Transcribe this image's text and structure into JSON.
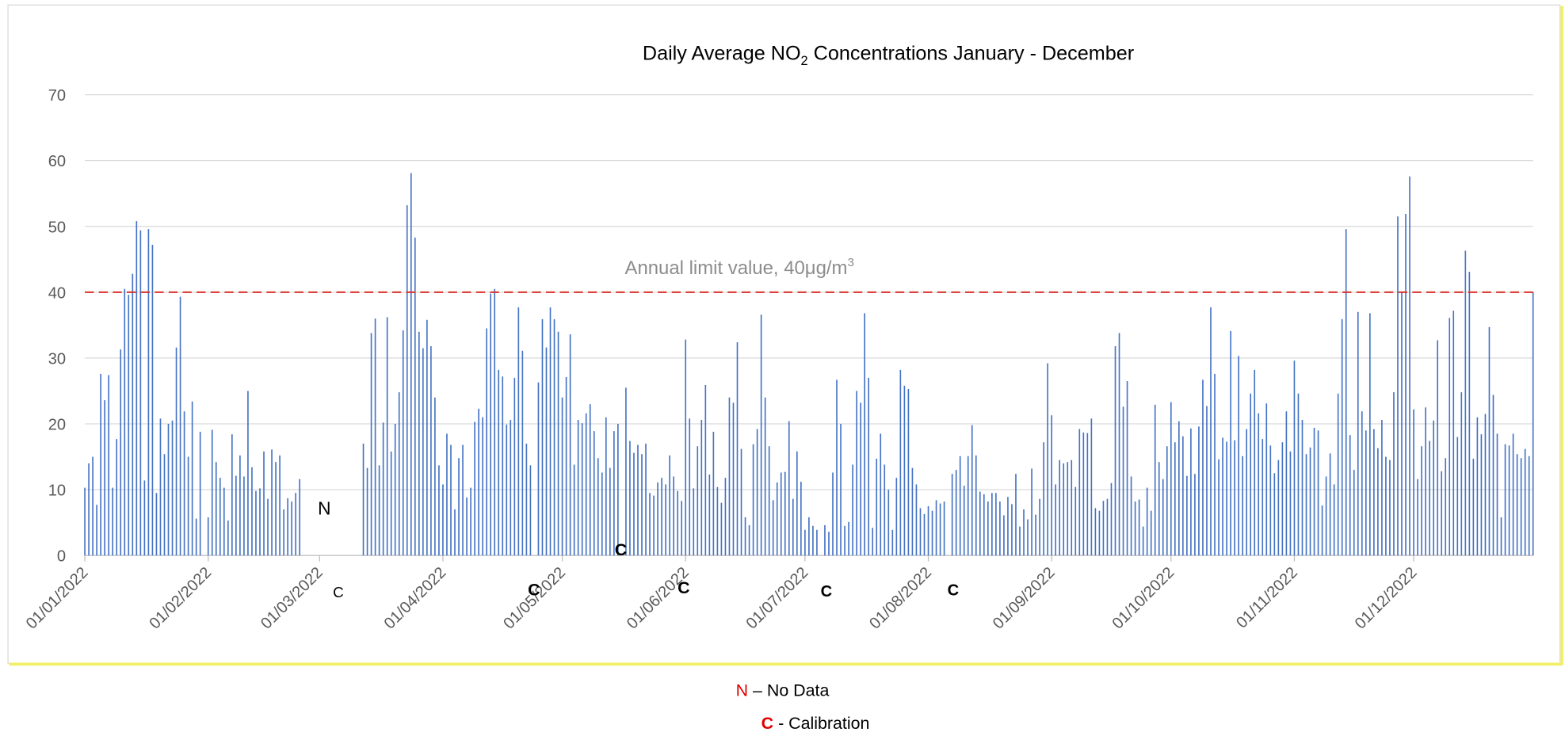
{
  "chart_data": {
    "type": "bar",
    "title": [
      "Daily Average NO",
      "2",
      " Concentrations January - December"
    ],
    "limit_label": [
      "Annual limit value, 40μg/m",
      "3"
    ],
    "limit_line": 40,
    "limit_color": "#d9302a",
    "color": "#4472c4",
    "grid": true,
    "ylim": [
      0,
      70
    ],
    "yticks": [
      0,
      10,
      20,
      30,
      40,
      50,
      60,
      70
    ],
    "annotations": [
      "N",
      "C",
      "C",
      "C",
      "C",
      "C",
      "C"
    ],
    "legend_items": [
      [
        "N",
        " – No Data"
      ],
      [
        "C",
        " - Calibration"
      ]
    ],
    "categories": [
      "01/01/2022",
      null,
      null,
      null,
      null,
      null,
      null,
      null,
      null,
      null,
      null,
      null,
      null,
      null,
      null,
      null,
      null,
      null,
      null,
      null,
      null,
      null,
      null,
      null,
      null,
      null,
      null,
      null,
      null,
      null,
      null,
      "01/02/2022",
      null,
      null,
      null,
      null,
      null,
      null,
      null,
      null,
      null,
      null,
      null,
      null,
      null,
      null,
      null,
      null,
      null,
      null,
      null,
      null,
      null,
      null,
      null,
      null,
      null,
      null,
      null,
      "01/03/2022",
      null,
      null,
      null,
      null,
      null,
      null,
      null,
      null,
      null,
      null,
      null,
      null,
      null,
      null,
      null,
      null,
      null,
      null,
      null,
      null,
      null,
      null,
      null,
      null,
      null,
      null,
      null,
      null,
      null,
      null,
      "01/04/2022",
      null,
      null,
      null,
      null,
      null,
      null,
      null,
      null,
      null,
      null,
      null,
      null,
      null,
      null,
      null,
      null,
      null,
      null,
      null,
      null,
      null,
      null,
      null,
      null,
      null,
      null,
      null,
      null,
      null,
      "01/05/2022",
      null,
      null,
      null,
      null,
      null,
      null,
      null,
      null,
      null,
      null,
      null,
      null,
      null,
      null,
      null,
      null,
      null,
      null,
      null,
      null,
      null,
      null,
      null,
      null,
      null,
      null,
      null,
      null,
      null,
      null,
      "01/06/2022",
      null,
      null,
      null,
      null,
      null,
      null,
      null,
      null,
      null,
      null,
      null,
      null,
      null,
      null,
      null,
      null,
      null,
      null,
      null,
      null,
      null,
      null,
      null,
      null,
      null,
      null,
      null,
      null,
      null,
      "01/07/2022",
      null,
      null,
      null,
      null,
      null,
      null,
      null,
      null,
      null,
      null,
      null,
      null,
      null,
      null,
      null,
      null,
      null,
      null,
      null,
      null,
      null,
      null,
      null,
      null,
      null,
      null,
      null,
      null,
      null,
      null,
      "01/08/2022",
      null,
      null,
      null,
      null,
      null,
      null,
      null,
      null,
      null,
      null,
      null,
      null,
      null,
      null,
      null,
      null,
      null,
      null,
      null,
      null,
      null,
      null,
      null,
      null,
      null,
      null,
      null,
      null,
      null,
      null,
      "01/09/2022",
      null,
      null,
      null,
      null,
      null,
      null,
      null,
      null,
      null,
      null,
      null,
      null,
      null,
      null,
      null,
      null,
      null,
      null,
      null,
      null,
      null,
      null,
      null,
      null,
      null,
      null,
      null,
      null,
      null,
      "01/10/2022",
      null,
      null,
      null,
      null,
      null,
      null,
      null,
      null,
      null,
      null,
      null,
      null,
      null,
      null,
      null,
      null,
      null,
      null,
      null,
      null,
      null,
      null,
      null,
      null,
      null,
      null,
      null,
      null,
      null,
      null,
      "01/11/2022",
      null,
      null,
      null,
      null,
      null,
      null,
      null,
      null,
      null,
      null,
      null,
      null,
      null,
      null,
      null,
      null,
      null,
      null,
      null,
      null,
      null,
      null,
      null,
      null,
      null,
      null,
      null,
      null,
      null,
      "01/12/2022",
      null,
      null,
      null,
      null,
      null,
      null,
      null,
      null,
      null,
      null,
      null,
      null,
      null,
      null,
      null,
      null,
      null,
      null,
      null,
      null,
      null,
      null,
      null,
      null,
      null,
      null,
      null,
      null,
      null,
      null
    ],
    "values": [
      10.3,
      14,
      15,
      7.7,
      27.6,
      23.6,
      27.4,
      10.3,
      17.7,
      31.3,
      40.5,
      39.6,
      42.8,
      50.8,
      49.4,
      11.4,
      49.6,
      47.2,
      9.5,
      20.8,
      15.4,
      20,
      20.5,
      31.6,
      39.3,
      21.9,
      15,
      23.4,
      5.6,
      18.8,
      null,
      5.8,
      19.1,
      14.2,
      11.8,
      10.3,
      5.3,
      18.4,
      12.1,
      15.2,
      12,
      25,
      13.4,
      9.8,
      10.2,
      15.8,
      8.6,
      16.1,
      14.2,
      15.2,
      7,
      8.7,
      8.2,
      9.5,
      11.6,
      null,
      null,
      null,
      null,
      null,
      null,
      null,
      null,
      null,
      null,
      null,
      null,
      null,
      null,
      null,
      17,
      13.3,
      33.8,
      36,
      13.7,
      20.2,
      36.2,
      15.8,
      20,
      24.8,
      34.2,
      53.2,
      58.1,
      48.3,
      34,
      31.5,
      35.8,
      31.8,
      24,
      13.7,
      10.8,
      18.5,
      16.8,
      7,
      14.8,
      16.8,
      8.8,
      10.3,
      20.3,
      22.3,
      21,
      34.5,
      39.8,
      40.5,
      28.2,
      27.2,
      19.9,
      20.6,
      27,
      37.7,
      31.1,
      17,
      13.7,
      null,
      26.3,
      35.9,
      31.6,
      37.7,
      35.9,
      34,
      24,
      27.1,
      33.6,
      13.8,
      20.6,
      20.1,
      21.6,
      23,
      18.9,
      14.8,
      12.6,
      21,
      13.3,
      18.9,
      20,
      null,
      25.5,
      17.4,
      15.6,
      16.8,
      15.4,
      17,
      9.5,
      9.1,
      11.1,
      11.8,
      10.8,
      15.2,
      12,
      9.8,
      8.3,
      32.8,
      20.8,
      10.2,
      16.6,
      20.6,
      25.9,
      12.3,
      18.8,
      10.4,
      8,
      11.8,
      24,
      23.2,
      32.4,
      16.2,
      5.8,
      4.6,
      16.9,
      19.2,
      36.6,
      24,
      16.6,
      8.4,
      11.1,
      12.6,
      12.7,
      20.4,
      8.6,
      15.8,
      11.2,
      3.9,
      5.8,
      4.5,
      3.9,
      null,
      4.6,
      3.6,
      12.6,
      26.7,
      20,
      4.5,
      5.1,
      13.8,
      25,
      23.2,
      36.8,
      27,
      4.2,
      14.7,
      18.5,
      13.8,
      10,
      3.9,
      11.8,
      28.2,
      25.8,
      25.3,
      13.3,
      10.8,
      7.2,
      6.3,
      7.5,
      6.8,
      8.4,
      7.9,
      8.2,
      null,
      12.4,
      13,
      15.1,
      10.6,
      15.1,
      19.8,
      15.2,
      9.7,
      9.3,
      8.2,
      9.5,
      9.5,
      8.2,
      6.1,
      8.9,
      7.8,
      12.4,
      4.4,
      7,
      5.5,
      13.2,
      6.2,
      8.6,
      17.2,
      29.2,
      21.3,
      10.8,
      14.5,
      14,
      14.2,
      14.5,
      10.4,
      19.2,
      18.7,
      18.6,
      20.8,
      7.2,
      6.8,
      8.3,
      8.6,
      11,
      31.8,
      33.8,
      22.6,
      26.5,
      12,
      8.2,
      8.5,
      4.4,
      10.3,
      6.8,
      22.9,
      14.2,
      11.6,
      16.6,
      23.3,
      17.2,
      20.4,
      18.1,
      12.1,
      19.3,
      12.4,
      19.6,
      26.7,
      22.7,
      37.7,
      27.6,
      14.6,
      17.9,
      17.3,
      34.1,
      17.5,
      30.3,
      15.1,
      19.2,
      24.6,
      28.2,
      21.6,
      17.7,
      23.1,
      16.7,
      12.5,
      14.5,
      17.2,
      21.9,
      15.8,
      29.6,
      24.6,
      20.6,
      15.4,
      16.4,
      19.4,
      19,
      7.6,
      12,
      15.5,
      10.8,
      24.6,
      35.9,
      49.6,
      18.3,
      13,
      37,
      21.9,
      19,
      36.8,
      19.2,
      16.3,
      20.6,
      15,
      14.5,
      24.8,
      51.5,
      40,
      51.9,
      57.6,
      22.2,
      11.6,
      16.6,
      22.5,
      17.4,
      20.5,
      32.7,
      12.8,
      14.8,
      36.1,
      37.2,
      18,
      24.8,
      46.3,
      43.1,
      14.7,
      21,
      18.4,
      21.5,
      34.7,
      24.4,
      18.5,
      5.8,
      16.9,
      16.7,
      18.5,
      15.4,
      14.8,
      16.2,
      15.1,
      40
    ]
  }
}
